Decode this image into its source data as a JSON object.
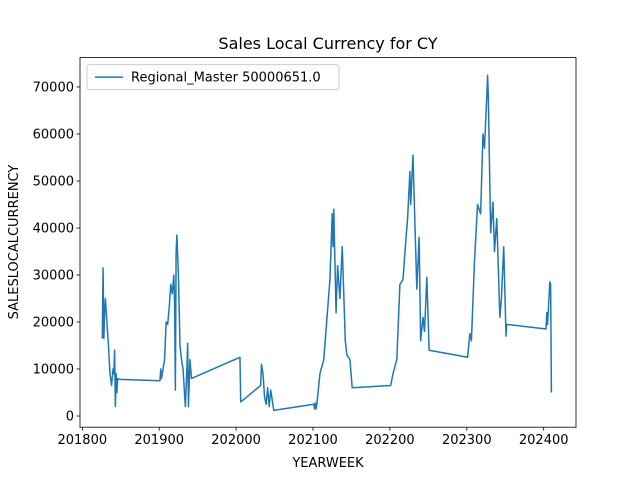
{
  "chart_data": {
    "type": "line",
    "title": "Sales Local Currency for CY",
    "x_label": "YEARWEEK",
    "y_label": "SALESLOCALCURRENCY",
    "x": [
      201826,
      201827,
      201828,
      201829,
      201830,
      201832,
      201834,
      201836,
      201838,
      201840,
      201841,
      201842,
      201843,
      201844,
      201845,
      201846,
      201848,
      201901,
      201902,
      201903,
      201905,
      201907,
      201909,
      201911,
      201913,
      201915,
      201917,
      201919,
      201920,
      201921,
      201922,
      201923,
      201925,
      201927,
      201929,
      201931,
      201934,
      201936,
      201937,
      201938,
      201940,
      201942,
      202005,
      202006,
      202032,
      202033,
      202035,
      202037,
      202039,
      202041,
      202043,
      202045,
      202049,
      202101,
      202102,
      202103,
      202104,
      202105,
      202109,
      202114,
      202122,
      202125,
      202126,
      202127,
      202130,
      202132,
      202135,
      202138,
      202142,
      202144,
      202148,
      202151,
      202201,
      202204,
      202209,
      202213,
      202217,
      202221,
      202223,
      202226,
      202227,
      202230,
      202232,
      202235,
      202238,
      202240,
      202243,
      202245,
      202248,
      202251,
      202301,
      202304,
      202306,
      202310,
      202314,
      202318,
      202321,
      202323,
      202326,
      202327,
      202328,
      202331,
      202334,
      202336,
      202339,
      202343,
      202345,
      202348,
      202351,
      202352,
      202403,
      202404,
      202405,
      202408,
      202409,
      202410
    ],
    "series": [
      {
        "name": "Regional_Master 50000651.0",
        "color": "#1f77b4",
        "values": [
          16500,
          31500,
          16500,
          22000,
          25000,
          20000,
          15000,
          9000,
          6500,
          10000,
          9000,
          14000,
          2000,
          9000,
          5000,
          8000,
          7800,
          7500,
          10000,
          8000,
          10000,
          12000,
          20000,
          19500,
          23000,
          28000,
          26000,
          30000,
          24000,
          5500,
          35000,
          38500,
          30000,
          15000,
          12000,
          10000,
          2000,
          10000,
          15500,
          2000,
          12000,
          8000,
          12500,
          3000,
          6500,
          11000,
          9000,
          4000,
          2500,
          6000,
          2000,
          5500,
          1200,
          2500,
          1500,
          2800,
          1500,
          2500,
          9000,
          12000,
          29000,
          43000,
          36000,
          44000,
          22000,
          32000,
          25000,
          36000,
          16000,
          13000,
          12000,
          6000,
          6500,
          9000,
          12000,
          28000,
          29000,
          38000,
          42000,
          52000,
          45000,
          55500,
          44000,
          27000,
          38000,
          16000,
          21000,
          18000,
          29500,
          14000,
          12500,
          17500,
          16000,
          33000,
          45000,
          43000,
          60000,
          57000,
          68000,
          72500,
          68000,
          39000,
          45500,
          35000,
          42000,
          21000,
          25000,
          36000,
          17000,
          19500,
          18500,
          22000,
          19500,
          28500,
          28000,
          5000
        ]
      }
    ],
    "xlim": [
      201797,
      202442
    ],
    "ylim": [
      -2380,
      76250
    ],
    "xticks": [
      201800,
      201900,
      202000,
      202100,
      202200,
      202300,
      202400
    ],
    "yticks": [
      0,
      10000,
      20000,
      30000,
      40000,
      50000,
      60000,
      70000
    ],
    "legend": "upper left"
  }
}
